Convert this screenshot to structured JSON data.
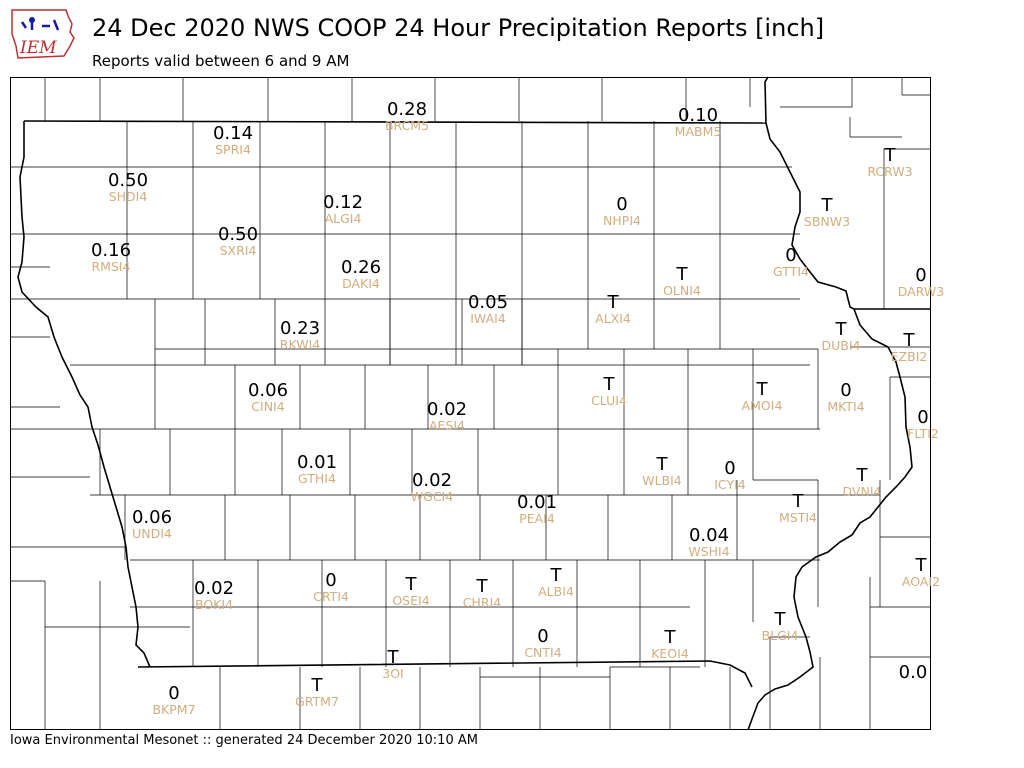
{
  "header": {
    "title": "24 Dec 2020 NWS COOP 24 Hour Precipitation Reports [inch]",
    "subtitle": "Reports valid between 6 and 9 AM"
  },
  "logo": {
    "text": "IEM",
    "icon": "iem-logo-icon"
  },
  "footer": {
    "text": "Iowa Environmental Mesonet :: generated 24 December 2020 10:10 AM"
  },
  "colors": {
    "value": "#000000",
    "station_id": "#d2ae7e",
    "county_line": "#000000",
    "state_line": "#000000"
  },
  "stations": [
    {
      "id": "BRCM5",
      "value": "0.28"
    },
    {
      "id": "MABM5",
      "value": "0.10"
    },
    {
      "id": "SPRI4",
      "value": "0.14"
    },
    {
      "id": "SHDI4",
      "value": "0.50"
    },
    {
      "id": "ALGI4",
      "value": "0.12"
    },
    {
      "id": "NHPI4",
      "value": "0"
    },
    {
      "id": "RCRW3",
      "value": "T"
    },
    {
      "id": "SBNW3",
      "value": "T"
    },
    {
      "id": "RMSI4",
      "value": "0.16"
    },
    {
      "id": "SXRI4",
      "value": "0.50"
    },
    {
      "id": "DAKI4",
      "value": "0.26"
    },
    {
      "id": "GTTI4",
      "value": "0"
    },
    {
      "id": "OLNI4",
      "value": "T"
    },
    {
      "id": "DARW3",
      "value": "0"
    },
    {
      "id": "IWAI4",
      "value": "0.05"
    },
    {
      "id": "ALXI4",
      "value": "T"
    },
    {
      "id": "RKWI4",
      "value": "0.23"
    },
    {
      "id": "DUBI4",
      "value": "T"
    },
    {
      "id": "EZBI2",
      "value": "T"
    },
    {
      "id": "CINI4",
      "value": "0.06"
    },
    {
      "id": "CLUI4",
      "value": "T"
    },
    {
      "id": "AMOI4",
      "value": "T"
    },
    {
      "id": "MKTI4",
      "value": "0"
    },
    {
      "id": "AESI4",
      "value": "0.02"
    },
    {
      "id": "FLTI2",
      "value": "0"
    },
    {
      "id": "GTHI4",
      "value": "0.01"
    },
    {
      "id": "WLBI4",
      "value": "T"
    },
    {
      "id": "ICYI4",
      "value": "0"
    },
    {
      "id": "DVNI4",
      "value": "T"
    },
    {
      "id": "WGCI4",
      "value": "0.02"
    },
    {
      "id": "PEAI4",
      "value": "0.01"
    },
    {
      "id": "MSTI4",
      "value": "T"
    },
    {
      "id": "UNDI4",
      "value": "0.06"
    },
    {
      "id": "WSHI4",
      "value": "0.04"
    },
    {
      "id": "AOAI2",
      "value": "T"
    },
    {
      "id": "BOKI4",
      "value": "0.02"
    },
    {
      "id": "CRTI4",
      "value": "0"
    },
    {
      "id": "OSEI4",
      "value": "T"
    },
    {
      "id": "CHRI4",
      "value": "T"
    },
    {
      "id": "ALBI4",
      "value": "T"
    },
    {
      "id": "BLGI4",
      "value": "T"
    },
    {
      "id": "CNTI4",
      "value": "0"
    },
    {
      "id": "KEOI4",
      "value": "T"
    },
    {
      "id": "3OI",
      "value": "T"
    },
    {
      "id": "BKPM7",
      "value": "0"
    },
    {
      "id": "GRTM7",
      "value": "T"
    },
    {
      "id": "",
      "value": "0.0"
    }
  ]
}
